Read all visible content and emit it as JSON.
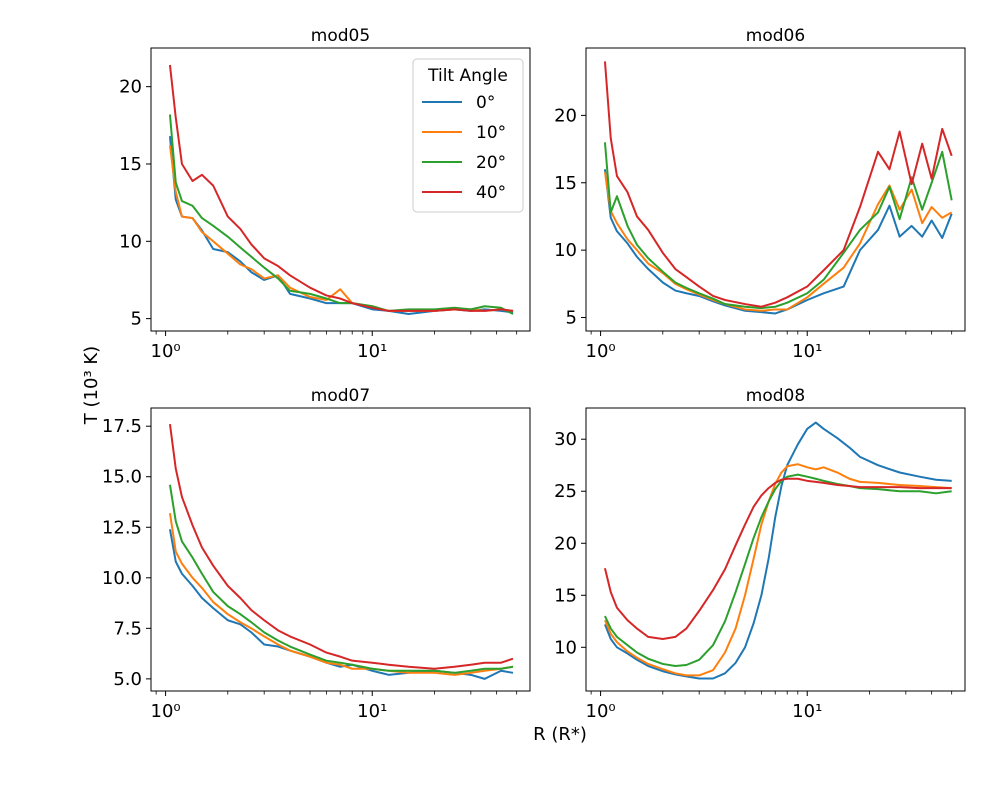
{
  "figure": {
    "ylabel": "T (10³ K)",
    "xlabel": "R (R*)",
    "legend_title": "Tilt Angle",
    "legend_placement": "top-right"
  },
  "series_styles": [
    {
      "name": "0°",
      "color": "#1f77b4"
    },
    {
      "name": "10°",
      "color": "#ff7f0e"
    },
    {
      "name": "20°",
      "color": "#2ca02c"
    },
    {
      "name": "40°",
      "color": "#d62728"
    }
  ],
  "chart_data": [
    {
      "type": "line",
      "title": "mod05",
      "xscale": "log",
      "xlim": [
        0.85,
        58
      ],
      "ylim": [
        4.2,
        22.5
      ],
      "xticks": [
        {
          "value": 1,
          "label": "10⁰"
        },
        {
          "value": 10,
          "label": "10¹"
        }
      ],
      "yticks": [
        {
          "value": 5,
          "label": "5"
        },
        {
          "value": 10,
          "label": "10"
        },
        {
          "value": 15,
          "label": "15"
        },
        {
          "value": 20,
          "label": "20"
        }
      ],
      "x": [
        1.05,
        1.12,
        1.2,
        1.35,
        1.5,
        1.7,
        2.0,
        2.3,
        2.6,
        3.0,
        3.5,
        4.0,
        5.0,
        6.0,
        7.0,
        8.0,
        10.0,
        12.0,
        15.0,
        20.0,
        25.0,
        30.0,
        35.0,
        42.0,
        48.0
      ],
      "series": [
        {
          "name": "0°",
          "values": [
            16.8,
            12.7,
            11.6,
            11.5,
            10.7,
            9.5,
            9.3,
            8.7,
            8.0,
            7.5,
            7.8,
            6.6,
            6.3,
            6.0,
            6.0,
            6.0,
            5.6,
            5.5,
            5.3,
            5.5,
            5.6,
            5.5,
            5.6,
            5.5,
            5.4
          ]
        },
        {
          "name": "10°",
          "values": [
            16.2,
            13.2,
            11.6,
            11.5,
            10.6,
            10.0,
            9.2,
            8.5,
            8.2,
            7.6,
            7.8,
            7.0,
            6.4,
            6.2,
            6.9,
            6.0,
            5.8,
            5.5,
            5.5,
            5.5,
            5.6,
            5.6,
            5.5,
            5.6,
            5.5
          ]
        },
        {
          "name": "20°",
          "values": [
            18.2,
            13.8,
            12.6,
            12.3,
            11.5,
            11.0,
            10.3,
            9.6,
            9.0,
            8.3,
            7.6,
            6.8,
            6.6,
            6.3,
            6.0,
            6.0,
            5.8,
            5.5,
            5.6,
            5.6,
            5.7,
            5.6,
            5.8,
            5.7,
            5.3
          ]
        },
        {
          "name": "40°",
          "values": [
            21.4,
            18.0,
            15.0,
            13.9,
            14.3,
            13.6,
            11.6,
            10.8,
            9.8,
            8.9,
            8.4,
            7.8,
            7.0,
            6.5,
            6.3,
            6.0,
            5.7,
            5.5,
            5.5,
            5.5,
            5.6,
            5.5,
            5.5,
            5.6,
            5.5
          ]
        }
      ]
    },
    {
      "type": "line",
      "title": "mod06",
      "xscale": "log",
      "xlim": [
        0.85,
        58
      ],
      "ylim": [
        4.0,
        25.0
      ],
      "xticks": [
        {
          "value": 1,
          "label": "10⁰"
        },
        {
          "value": 10,
          "label": "10¹"
        }
      ],
      "yticks": [
        {
          "value": 5,
          "label": "5"
        },
        {
          "value": 10,
          "label": "10"
        },
        {
          "value": 15,
          "label": "15"
        },
        {
          "value": 20,
          "label": "20"
        }
      ],
      "x": [
        1.05,
        1.12,
        1.2,
        1.35,
        1.5,
        1.7,
        2.0,
        2.3,
        2.6,
        3.0,
        3.5,
        4.0,
        5.0,
        6.0,
        7.0,
        8.0,
        10.0,
        12.0,
        15.0,
        18.0,
        22.0,
        25.0,
        28.0,
        32.0,
        36.0,
        40.0,
        45.0,
        50.0
      ],
      "series": [
        {
          "name": "0°",
          "values": [
            16.0,
            12.4,
            11.4,
            10.5,
            9.5,
            8.6,
            7.6,
            7.0,
            6.8,
            6.6,
            6.2,
            5.9,
            5.5,
            5.4,
            5.3,
            5.6,
            6.3,
            6.8,
            7.3,
            10.0,
            11.5,
            13.3,
            11.0,
            11.8,
            11.0,
            12.2,
            10.9,
            12.7
          ]
        },
        {
          "name": "10°",
          "values": [
            15.8,
            12.9,
            12.0,
            10.8,
            10.0,
            9.0,
            8.3,
            7.5,
            7.1,
            6.7,
            6.3,
            6.0,
            5.6,
            5.5,
            5.6,
            5.6,
            6.5,
            7.5,
            8.7,
            10.5,
            13.4,
            14.8,
            13.0,
            14.5,
            12.0,
            13.2,
            12.4,
            12.8
          ]
        },
        {
          "name": "20°",
          "values": [
            18.0,
            12.8,
            14.0,
            11.8,
            10.4,
            9.4,
            8.4,
            7.6,
            7.2,
            6.8,
            6.4,
            6.0,
            5.8,
            5.7,
            5.8,
            6.1,
            6.8,
            7.8,
            9.8,
            11.5,
            12.8,
            14.7,
            12.3,
            15.4,
            13.0,
            15.0,
            17.3,
            13.7
          ]
        },
        {
          "name": "40°",
          "values": [
            24.0,
            18.3,
            15.5,
            14.3,
            12.5,
            11.5,
            9.8,
            8.6,
            8.0,
            7.3,
            6.6,
            6.3,
            6.0,
            5.8,
            6.1,
            6.5,
            7.3,
            8.5,
            10.0,
            13.2,
            17.3,
            16.0,
            18.8,
            14.9,
            17.9,
            15.3,
            19.0,
            17.0
          ]
        }
      ]
    },
    {
      "type": "line",
      "title": "mod07",
      "xscale": "log",
      "xlim": [
        0.85,
        58
      ],
      "ylim": [
        4.4,
        18.4
      ],
      "xticks": [
        {
          "value": 1,
          "label": "10⁰"
        },
        {
          "value": 10,
          "label": "10¹"
        }
      ],
      "yticks": [
        {
          "value": 5,
          "label": "5.0"
        },
        {
          "value": 7.5,
          "label": "7.5"
        },
        {
          "value": 10,
          "label": "10.0"
        },
        {
          "value": 12.5,
          "label": "12.5"
        },
        {
          "value": 15,
          "label": "15.0"
        },
        {
          "value": 17.5,
          "label": "17.5"
        }
      ],
      "x": [
        1.05,
        1.12,
        1.2,
        1.35,
        1.5,
        1.7,
        2.0,
        2.3,
        2.6,
        3.0,
        3.5,
        4.0,
        5.0,
        6.0,
        7.0,
        8.0,
        10.0,
        12.0,
        15.0,
        20.0,
        25.0,
        30.0,
        35.0,
        42.0,
        48.0
      ],
      "series": [
        {
          "name": "0°",
          "values": [
            12.4,
            10.8,
            10.2,
            9.6,
            9.0,
            8.5,
            7.9,
            7.7,
            7.3,
            6.7,
            6.6,
            6.4,
            6.1,
            5.8,
            5.6,
            5.7,
            5.4,
            5.2,
            5.3,
            5.4,
            5.3,
            5.2,
            5.0,
            5.4,
            5.3
          ]
        },
        {
          "name": "10°",
          "values": [
            13.2,
            11.3,
            10.7,
            10.0,
            9.5,
            8.8,
            8.2,
            7.8,
            7.5,
            7.1,
            6.7,
            6.4,
            6.1,
            5.8,
            5.7,
            5.5,
            5.5,
            5.4,
            5.3,
            5.3,
            5.2,
            5.3,
            5.4,
            5.5,
            5.6
          ]
        },
        {
          "name": "20°",
          "values": [
            14.6,
            12.8,
            11.8,
            11.0,
            10.2,
            9.3,
            8.6,
            8.2,
            7.8,
            7.3,
            6.9,
            6.6,
            6.2,
            5.9,
            5.8,
            5.7,
            5.5,
            5.4,
            5.4,
            5.4,
            5.3,
            5.4,
            5.5,
            5.5,
            5.6
          ]
        },
        {
          "name": "40°",
          "values": [
            17.6,
            15.4,
            14.0,
            12.6,
            11.5,
            10.6,
            9.6,
            9.0,
            8.4,
            7.9,
            7.4,
            7.1,
            6.7,
            6.3,
            6.1,
            5.9,
            5.8,
            5.7,
            5.6,
            5.5,
            5.6,
            5.7,
            5.8,
            5.8,
            6.0
          ]
        }
      ]
    },
    {
      "type": "line",
      "title": "mod08",
      "xscale": "log",
      "xlim": [
        0.85,
        58
      ],
      "ylim": [
        5.8,
        33.0
      ],
      "xticks": [
        {
          "value": 1,
          "label": "10⁰"
        },
        {
          "value": 10,
          "label": "10¹"
        }
      ],
      "yticks": [
        {
          "value": 10,
          "label": "10"
        },
        {
          "value": 15,
          "label": "15"
        },
        {
          "value": 20,
          "label": "20"
        },
        {
          "value": 25,
          "label": "25"
        },
        {
          "value": 30,
          "label": "30"
        }
      ],
      "x": [
        1.05,
        1.12,
        1.2,
        1.35,
        1.5,
        1.7,
        2.0,
        2.3,
        2.6,
        3.0,
        3.5,
        4.0,
        4.5,
        5.0,
        5.5,
        6.0,
        6.5,
        7.0,
        7.5,
        8.0,
        9.0,
        10.0,
        11.0,
        12.0,
        14.0,
        16.0,
        18.0,
        22.0,
        28.0,
        35.0,
        42.0,
        50.0
      ],
      "series": [
        {
          "name": "0°",
          "values": [
            12.2,
            10.8,
            10.0,
            9.4,
            8.8,
            8.2,
            7.7,
            7.4,
            7.2,
            7.0,
            7.0,
            7.5,
            8.5,
            10.0,
            12.3,
            15.0,
            18.5,
            22.5,
            25.5,
            27.5,
            29.5,
            31.0,
            31.6,
            31.0,
            30.1,
            29.2,
            28.3,
            27.5,
            26.8,
            26.4,
            26.1,
            26.0
          ]
        },
        {
          "name": "10°",
          "values": [
            12.6,
            11.3,
            10.5,
            9.6,
            9.0,
            8.4,
            7.9,
            7.5,
            7.3,
            7.3,
            7.8,
            9.5,
            11.8,
            15.0,
            18.5,
            21.8,
            24.0,
            25.7,
            26.8,
            27.4,
            27.6,
            27.3,
            27.1,
            27.3,
            26.8,
            26.2,
            25.9,
            25.8,
            25.6,
            25.5,
            25.4,
            25.3
          ]
        },
        {
          "name": "20°",
          "values": [
            13.0,
            11.8,
            11.0,
            10.2,
            9.5,
            8.9,
            8.4,
            8.2,
            8.3,
            8.8,
            10.2,
            12.5,
            15.3,
            18.0,
            20.5,
            22.5,
            24.0,
            25.2,
            26.0,
            26.4,
            26.6,
            26.4,
            26.2,
            26.0,
            25.7,
            25.5,
            25.3,
            25.2,
            25.0,
            25.0,
            24.8,
            25.0
          ]
        },
        {
          "name": "40°",
          "values": [
            17.6,
            15.3,
            13.8,
            12.6,
            11.8,
            11.0,
            10.8,
            11.0,
            11.8,
            13.5,
            15.5,
            17.5,
            19.8,
            21.8,
            23.5,
            24.6,
            25.3,
            25.8,
            26.1,
            26.2,
            26.2,
            26.0,
            25.9,
            25.8,
            25.6,
            25.5,
            25.4,
            25.4,
            25.4,
            25.3,
            25.3,
            25.3
          ]
        }
      ]
    }
  ]
}
